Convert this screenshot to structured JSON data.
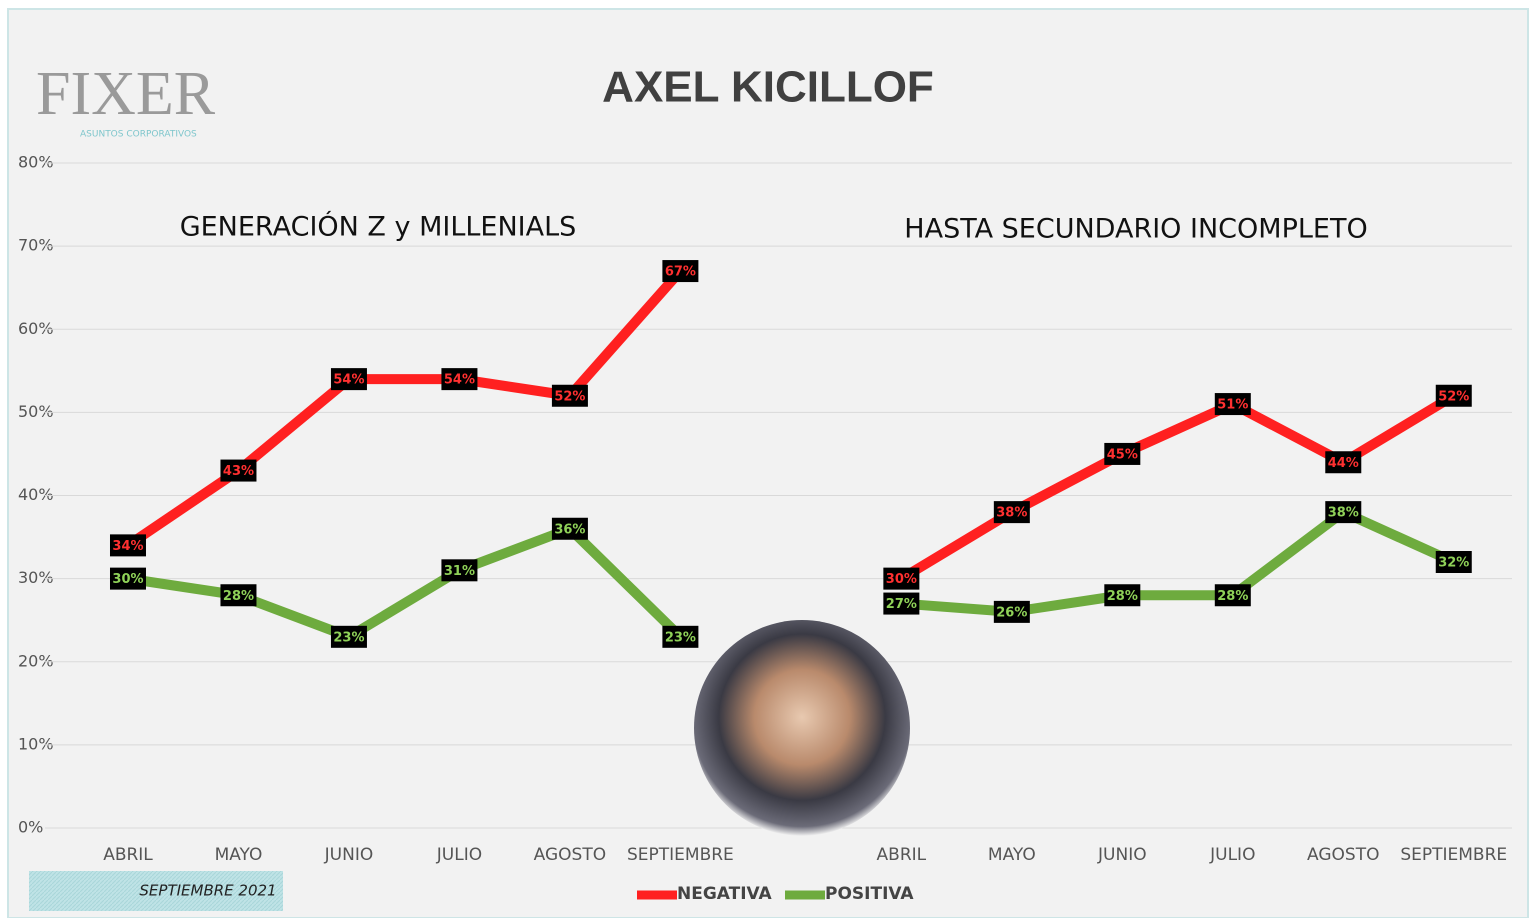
{
  "chart_data": {
    "type": "line",
    "title": "AXEL KICILLOF",
    "annotations": [
      "GENERACIÓN Z y MILLENIALS",
      "HASTA SECUNDARIO INCOMPLETO"
    ],
    "logo": {
      "text": "FIXER",
      "subtitle": "ASUNTOS CORPORATIVOS"
    },
    "footer": "SEPTIEMBRE 2021",
    "categories": [
      "ABRIL",
      "MAYO",
      "JUNIO",
      "JULIO",
      "AGOSTO",
      "SEPTIEMBRE",
      null,
      "ABRIL",
      "MAYO",
      "JUNIO",
      "JULIO",
      "AGOSTO",
      "SEPTIEMBRE"
    ],
    "series": [
      {
        "name": "NEGATIVA",
        "color": "#ff2020",
        "label_color": "#ff3030",
        "values": [
          34,
          43,
          54,
          54,
          52,
          67,
          null,
          30,
          38,
          45,
          51,
          44,
          52
        ],
        "value_labels": [
          "34%",
          "43%",
          "54%",
          "54%",
          "52%",
          "67%",
          null,
          "30%",
          "38%",
          "45%",
          "51%",
          "44%",
          "52%"
        ]
      },
      {
        "name": "POSITIVA",
        "color": "#6eab3e",
        "label_color": "#8fd158",
        "values": [
          30,
          28,
          23,
          31,
          36,
          23,
          null,
          27,
          26,
          28,
          28,
          38,
          32
        ],
        "value_labels": [
          "30%",
          "28%",
          "23%",
          "31%",
          "36%",
          "23%",
          null,
          "27%",
          "26%",
          "28%",
          "28%",
          "38%",
          "32%"
        ]
      }
    ],
    "ylim": [
      0,
      80
    ],
    "yticks": [
      {
        "value": 0,
        "label": "0%"
      },
      {
        "value": 10,
        "label": "10%"
      },
      {
        "value": 20,
        "label": "20%"
      },
      {
        "value": 30,
        "label": "30%"
      },
      {
        "value": 40,
        "label": "40%"
      },
      {
        "value": 50,
        "label": "50%"
      },
      {
        "value": 60,
        "label": "60%"
      },
      {
        "value": 70,
        "label": "70%"
      },
      {
        "value": 80,
        "label": "80%"
      }
    ],
    "grid": true,
    "legend": "bottom"
  }
}
